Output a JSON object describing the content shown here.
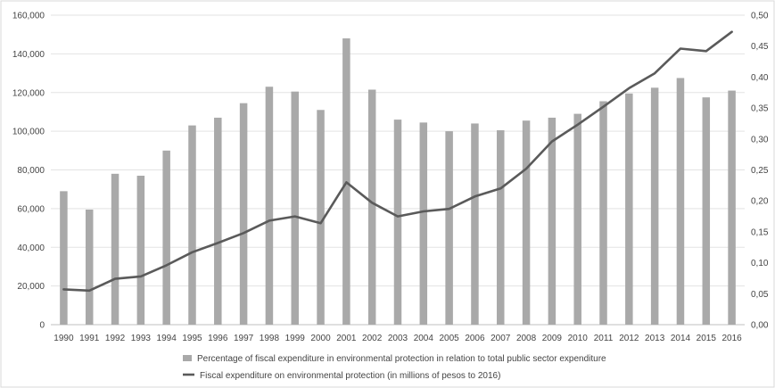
{
  "chart_data": {
    "type": "bar",
    "categories": [
      "1990",
      "1991",
      "1992",
      "1993",
      "1994",
      "1995",
      "1996",
      "1997",
      "1998",
      "1999",
      "2000",
      "2001",
      "2002",
      "2003",
      "2004",
      "2005",
      "2006",
      "2007",
      "2008",
      "2009",
      "2010",
      "2011",
      "2012",
      "2013",
      "2014",
      "2015",
      "2016"
    ],
    "series": [
      {
        "name": "Percentage of fiscal expenditure in environmental protection in relation to total public sector expenditure",
        "type": "bar",
        "axis": "left",
        "color": "#a9a9a9",
        "values": [
          69000,
          59500,
          78000,
          77000,
          90000,
          103000,
          107000,
          114500,
          123000,
          120500,
          111000,
          148000,
          121500,
          106000,
          104500,
          100000,
          104000,
          100500,
          105500,
          107000,
          109000,
          115500,
          119500,
          122500,
          127500,
          117500,
          121000
        ]
      },
      {
        "name": "Fiscal expenditure on environmental protection (in millions of pesos to 2016)",
        "type": "line",
        "axis": "right",
        "color": "#5a5a5a",
        "values": [
          0.057,
          0.055,
          0.074,
          0.078,
          0.096,
          0.117,
          0.132,
          0.148,
          0.168,
          0.175,
          0.164,
          0.23,
          0.197,
          0.175,
          0.183,
          0.187,
          0.207,
          0.22,
          0.252,
          0.296,
          0.323,
          0.352,
          0.382,
          0.406,
          0.446,
          0.442,
          0.473
        ]
      }
    ],
    "left_axis": {
      "min": 0,
      "max": 160000,
      "step": 20000,
      "tick_labels": [
        "0",
        "20,000",
        "40,000",
        "60,000",
        "80,000",
        "100,000",
        "120,000",
        "140,000",
        "160,000"
      ]
    },
    "right_axis": {
      "min": 0,
      "max": 0.5,
      "step": 0.05,
      "tick_labels": [
        "0,00",
        "0,05",
        "0,10",
        "0,15",
        "0,20",
        "0,25",
        "0,30",
        "0,35",
        "0,40",
        "0,45",
        "0,50"
      ]
    },
    "grid": true,
    "legend_position": "bottom",
    "title": "",
    "xlabel": "",
    "ylabel": ""
  }
}
